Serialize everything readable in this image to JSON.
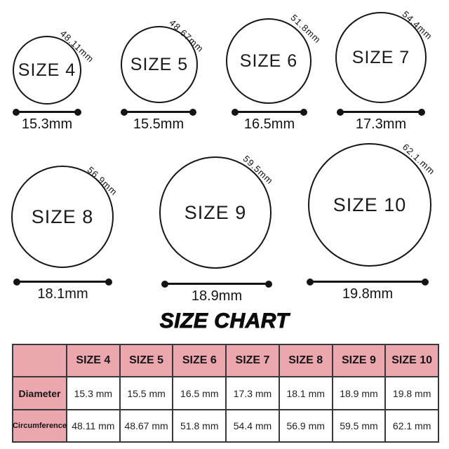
{
  "page_title": "SIZE CHART",
  "colors": {
    "background": "#ffffff",
    "ink": "#141414",
    "table_header_pink": "#eca6ae",
    "table_border": "#383838"
  },
  "rings": [
    {
      "label": "SIZE 4",
      "circumference": "48.11mm",
      "diameter": "15.3mm"
    },
    {
      "label": "SIZE 5",
      "circumference": "48.67mm",
      "diameter": "15.5mm"
    },
    {
      "label": "SIZE 6",
      "circumference": "51.8mm",
      "diameter": "16.5mm"
    },
    {
      "label": "SIZE 7",
      "circumference": "54.4mm",
      "diameter": "17.3mm"
    },
    {
      "label": "SIZE 8",
      "circumference": "56.9mm",
      "diameter": "18.1mm"
    },
    {
      "label": "SIZE 9",
      "circumference": "59.5mm",
      "diameter": "18.9mm"
    },
    {
      "label": "SIZE 10",
      "circumference": "62.1.mm",
      "diameter": "19.8mm"
    }
  ],
  "table": {
    "corner": "",
    "columns": [
      "SIZE 4",
      "SIZE 5",
      "SIZE 6",
      "SIZE 7",
      "SIZE 8",
      "SIZE 9",
      "SIZE 10"
    ],
    "rows": [
      {
        "label": "Diameter",
        "values": [
          "15.3 mm",
          "15.5 mm",
          "16.5 mm",
          "17.3 mm",
          "18.1 mm",
          "18.9 mm",
          "19.8 mm"
        ]
      },
      {
        "label": "Circumference",
        "values": [
          "48.11 mm",
          "48.67 mm",
          "51.8 mm",
          "54.4 mm",
          "56.9 mm",
          "59.5 mm",
          "62.1 mm"
        ]
      }
    ]
  },
  "chart_data": {
    "type": "table",
    "title": "SIZE CHART",
    "categories": [
      "SIZE 4",
      "SIZE 5",
      "SIZE 6",
      "SIZE 7",
      "SIZE 8",
      "SIZE 9",
      "SIZE 10"
    ],
    "series": [
      {
        "name": "Diameter (mm)",
        "values": [
          15.3,
          15.5,
          16.5,
          17.3,
          18.1,
          18.9,
          19.8
        ]
      },
      {
        "name": "Circumference (mm)",
        "values": [
          48.11,
          48.67,
          51.8,
          54.4,
          56.9,
          59.5,
          62.1
        ]
      }
    ],
    "legend_position": "none",
    "grid": false
  }
}
